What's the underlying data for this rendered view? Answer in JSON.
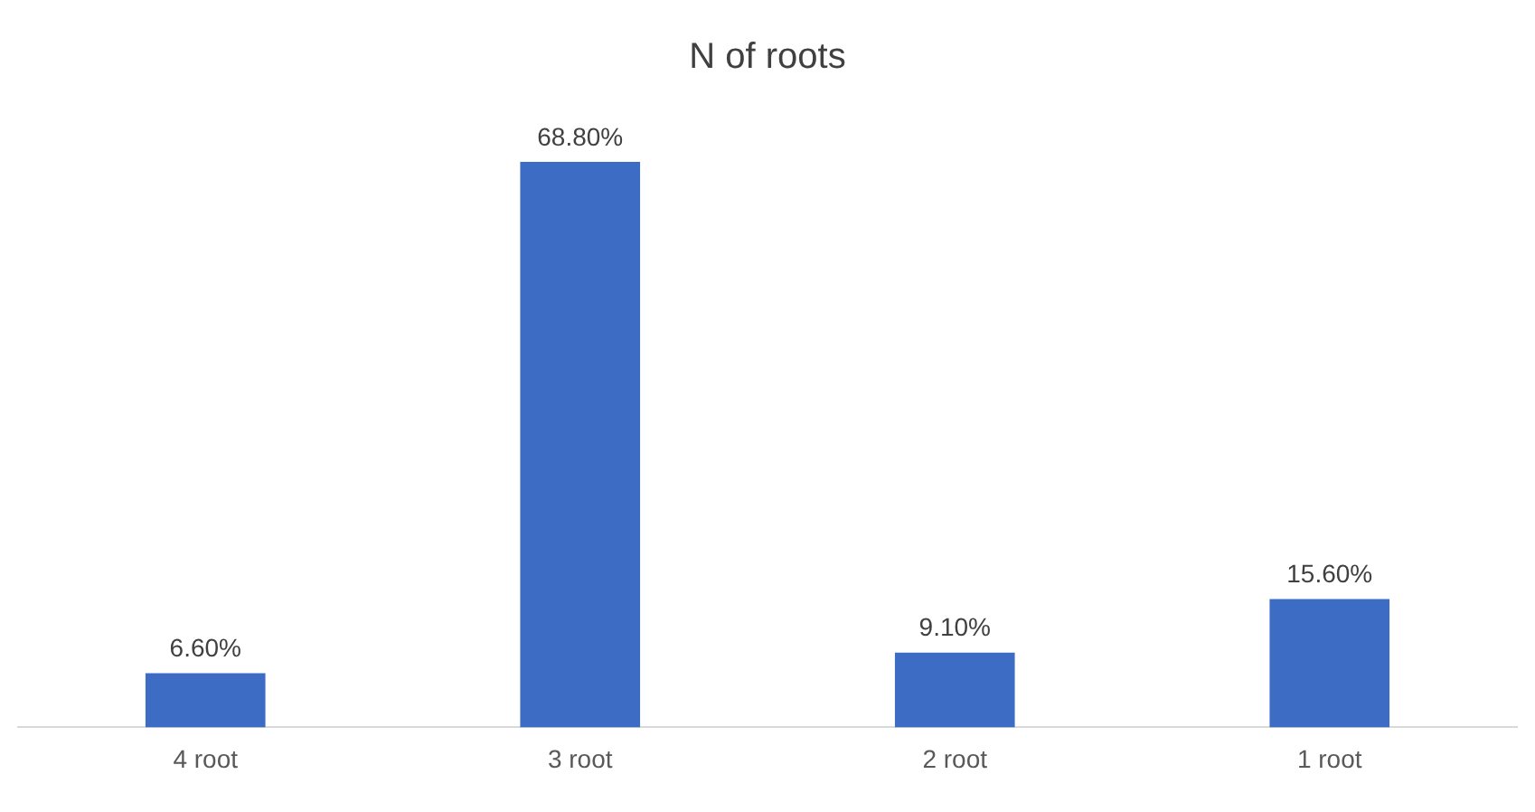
{
  "chart_data": {
    "type": "bar",
    "title": "N of roots",
    "categories": [
      "4 root",
      "3 root",
      "2 root",
      "1 root"
    ],
    "values": [
      6.6,
      68.8,
      9.1,
      15.6
    ],
    "value_labels": [
      "6.60%",
      "68.80%",
      "9.10%",
      "15.60%"
    ],
    "color": "#3d6cc4",
    "grid": false,
    "legend": false
  }
}
